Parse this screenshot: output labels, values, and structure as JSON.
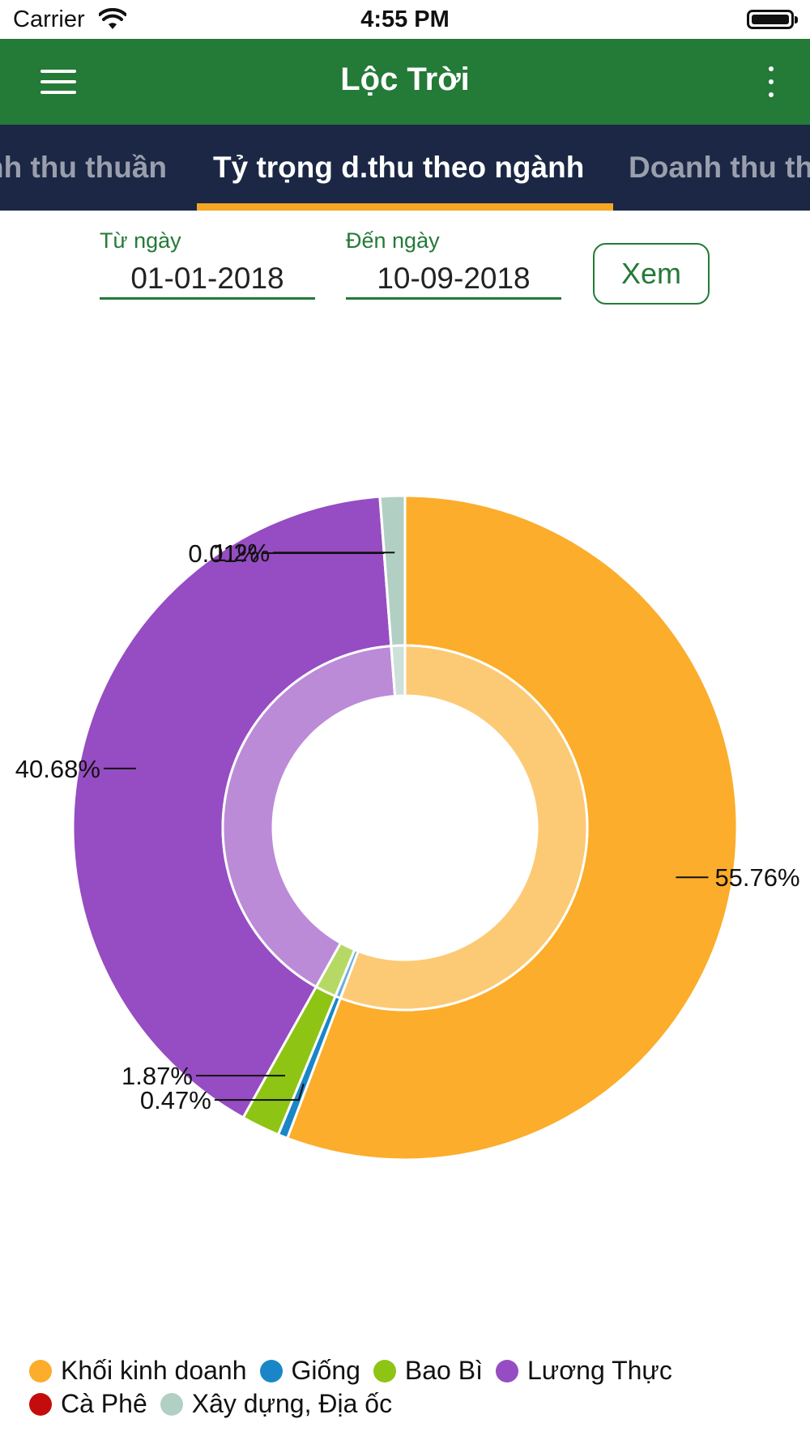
{
  "status_bar": {
    "carrier": "Carrier",
    "time": "4:55 PM"
  },
  "app_bar": {
    "title": "Lộc Trời",
    "menu_icon": "hamburger-menu-icon",
    "more_icon": "more-vertical-icon"
  },
  "tabs": [
    {
      "label": "nh thu thuần",
      "active": false
    },
    {
      "label": "Tỷ trọng d.thu theo ngành",
      "active": true
    },
    {
      "label": "Doanh thu th",
      "active": false
    }
  ],
  "filter": {
    "from_label": "Từ ngày",
    "from_value": "01-01-2018",
    "to_label": "Đến ngày",
    "to_value": "10-09-2018",
    "view_label": "Xem"
  },
  "chart_data": {
    "type": "pie",
    "style": "donut",
    "categories": [
      "Khối kinh doanh",
      "Giống",
      "Bao Bì",
      "Lương Thực",
      "Cà Phê",
      "Xây dựng, Địa ốc"
    ],
    "values": [
      55.76,
      0.47,
      1.87,
      40.68,
      0.01,
      1.2
    ],
    "labels": [
      "55.76%",
      "0.47%",
      "1.87%",
      "40.68%",
      "0.01%",
      "1.2%"
    ],
    "colors": [
      "#fbad2b",
      "#1a86c8",
      "#8ec414",
      "#964cc2",
      "#c50c0c",
      "#b2cfc4"
    ],
    "legend_position": "bottom-left"
  }
}
